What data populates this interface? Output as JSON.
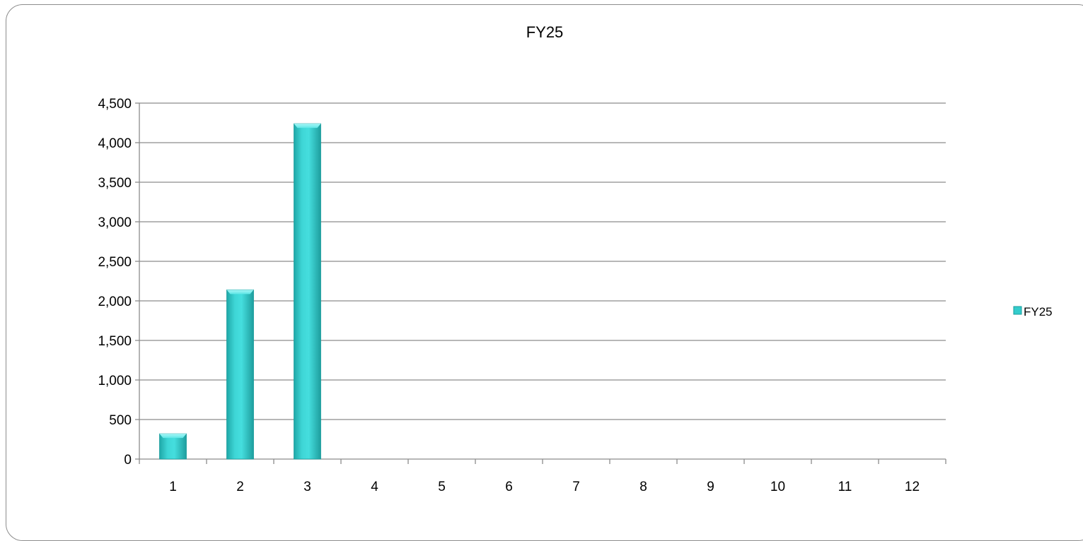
{
  "chart_data": {
    "type": "bar",
    "title": "FY25",
    "xlabel": "",
    "ylabel": "",
    "categories": [
      "1",
      "2",
      "3",
      "4",
      "5",
      "6",
      "7",
      "8",
      "9",
      "10",
      "11",
      "12"
    ],
    "series": [
      {
        "name": "FY25",
        "values": [
          320,
          2140,
          4240,
          null,
          null,
          null,
          null,
          null,
          null,
          null,
          null,
          null
        ]
      }
    ],
    "ylim": [
      0,
      4500
    ],
    "yticks": [
      "0",
      "500",
      "1,000",
      "1,500",
      "2,000",
      "2,500",
      "3,000",
      "3,500",
      "4,000",
      "4,500"
    ],
    "grid": true,
    "legend": "right",
    "colors": {
      "bar": "#33cccc",
      "bar_light": "#7ff0f0",
      "bar_dark": "#1a9c9c",
      "gridline": "#8c8c8c",
      "frame": "#8c8c8c"
    }
  }
}
